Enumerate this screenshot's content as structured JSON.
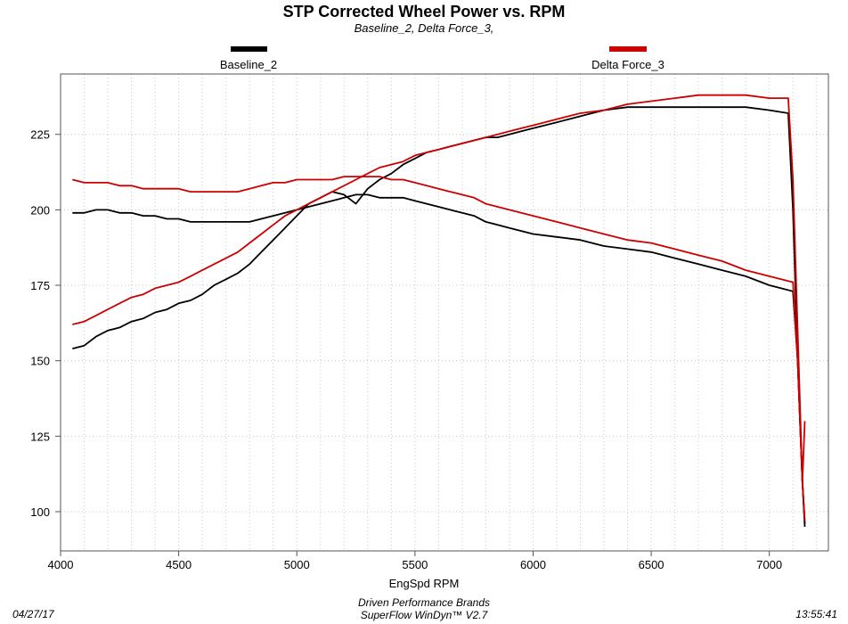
{
  "colors": {
    "baseline": "#000000",
    "delta": "#cc0000"
  },
  "footer": {
    "date": "04/27/17",
    "line1": "Driven Performance Brands",
    "line2": "SuperFlow WinDyn™ V2.7",
    "time": "13:55:41"
  },
  "chart_data": {
    "type": "line",
    "title": "STP Corrected Wheel Power vs. RPM",
    "subtitle": "Baseline_2, Delta Force_3,",
    "xlabel": "EngSpd  RPM",
    "ylabel": "",
    "xlim": [
      4000,
      7250
    ],
    "ylim": [
      87,
      245
    ],
    "x_ticks": [
      4000,
      4500,
      5000,
      5500,
      6000,
      6500,
      7000
    ],
    "y_ticks": [
      100,
      125,
      150,
      175,
      200,
      225
    ],
    "grid": true,
    "legend_position": "top",
    "legend": [
      "Baseline_2",
      "Delta Force_3"
    ],
    "series": [
      {
        "name": "Baseline_2",
        "color_key": "baseline",
        "curves": [
          {
            "x": [
              4050,
              4100,
              4150,
              4200,
              4250,
              4300,
              4350,
              4400,
              4450,
              4500,
              4550,
              4600,
              4650,
              4700,
              4750,
              4800,
              4850,
              4900,
              4950,
              5000,
              5050,
              5100,
              5150,
              5200,
              5250,
              5300,
              5350,
              5400,
              5450,
              5500,
              5550,
              5600,
              5650,
              5700,
              5750,
              5800,
              5850,
              5900,
              5950,
              6000,
              6100,
              6200,
              6300,
              6400,
              6500,
              6600,
              6700,
              6800,
              6900,
              7000,
              7080,
              7100,
              7120,
              7140,
              7150
            ],
            "y": [
              154,
              155,
              158,
              160,
              161,
              163,
              164,
              166,
              167,
              169,
              170,
              172,
              175,
              177,
              179,
              182,
              186,
              190,
              194,
              198,
              202,
              204,
              206,
              205,
              202,
              207,
              210,
              212,
              215,
              217,
              219,
              220,
              221,
              222,
              223,
              224,
              224,
              225,
              226,
              227,
              229,
              231,
              233,
              234,
              234,
              234,
              234,
              234,
              234,
              233,
              232,
              200,
              150,
              110,
              96
            ]
          },
          {
            "x": [
              4050,
              4100,
              4150,
              4200,
              4250,
              4300,
              4350,
              4400,
              4450,
              4500,
              4550,
              4600,
              4650,
              4700,
              4750,
              4800,
              4850,
              4900,
              4950,
              5000,
              5050,
              5100,
              5150,
              5200,
              5250,
              5300,
              5350,
              5400,
              5450,
              5500,
              5550,
              5600,
              5650,
              5700,
              5750,
              5800,
              5850,
              5900,
              5950,
              6000,
              6100,
              6200,
              6300,
              6400,
              6500,
              6600,
              6700,
              6800,
              6900,
              7000,
              7050,
              7100,
              7120,
              7140,
              7150
            ],
            "y": [
              199,
              199,
              200,
              200,
              199,
              199,
              198,
              198,
              197,
              197,
              196,
              196,
              196,
              196,
              196,
              196,
              197,
              198,
              199,
              200,
              201,
              202,
              203,
              204,
              205,
              205,
              204,
              204,
              204,
              203,
              202,
              201,
              200,
              199,
              198,
              196,
              195,
              194,
              193,
              192,
              191,
              190,
              188,
              187,
              186,
              184,
              182,
              180,
              178,
              175,
              174,
              173,
              150,
              110,
              95
            ]
          }
        ]
      },
      {
        "name": "Delta Force_3",
        "color_key": "delta",
        "curves": [
          {
            "x": [
              4050,
              4100,
              4150,
              4200,
              4250,
              4300,
              4350,
              4400,
              4450,
              4500,
              4550,
              4600,
              4650,
              4700,
              4750,
              4800,
              4850,
              4900,
              4950,
              5000,
              5050,
              5100,
              5150,
              5200,
              5250,
              5300,
              5350,
              5400,
              5450,
              5500,
              5550,
              5600,
              5650,
              5700,
              5750,
              5800,
              5850,
              5900,
              5950,
              6000,
              6100,
              6200,
              6300,
              6400,
              6500,
              6600,
              6700,
              6800,
              6900,
              7000,
              7080,
              7100,
              7120,
              7140,
              7150
            ],
            "y": [
              162,
              163,
              165,
              167,
              169,
              171,
              172,
              174,
              175,
              176,
              178,
              180,
              182,
              184,
              186,
              189,
              192,
              195,
              198,
              200,
              202,
              204,
              206,
              208,
              210,
              212,
              214,
              215,
              216,
              218,
              219,
              220,
              221,
              222,
              223,
              224,
              225,
              226,
              227,
              228,
              230,
              232,
              233,
              235,
              236,
              237,
              238,
              238,
              238,
              237,
              237,
              210,
              160,
              110,
              97
            ]
          },
          {
            "x": [
              4050,
              4100,
              4150,
              4200,
              4250,
              4300,
              4350,
              4400,
              4450,
              4500,
              4550,
              4600,
              4650,
              4700,
              4750,
              4800,
              4850,
              4900,
              4950,
              5000,
              5050,
              5100,
              5150,
              5200,
              5250,
              5300,
              5350,
              5400,
              5450,
              5500,
              5550,
              5600,
              5650,
              5700,
              5750,
              5800,
              5850,
              5900,
              5950,
              6000,
              6100,
              6200,
              6300,
              6400,
              6500,
              6600,
              6700,
              6800,
              6900,
              7000,
              7050,
              7100,
              7120,
              7140,
              7150
            ],
            "y": [
              210,
              209,
              209,
              209,
              208,
              208,
              207,
              207,
              207,
              207,
              206,
              206,
              206,
              206,
              206,
              207,
              208,
              209,
              209,
              210,
              210,
              210,
              210,
              211,
              211,
              211,
              211,
              210,
              210,
              209,
              208,
              207,
              206,
              205,
              204,
              202,
              201,
              200,
              199,
              198,
              196,
              194,
              192,
              190,
              189,
              187,
              185,
              183,
              180,
              178,
              177,
              176,
              150,
              110,
              130
            ]
          }
        ]
      }
    ]
  }
}
